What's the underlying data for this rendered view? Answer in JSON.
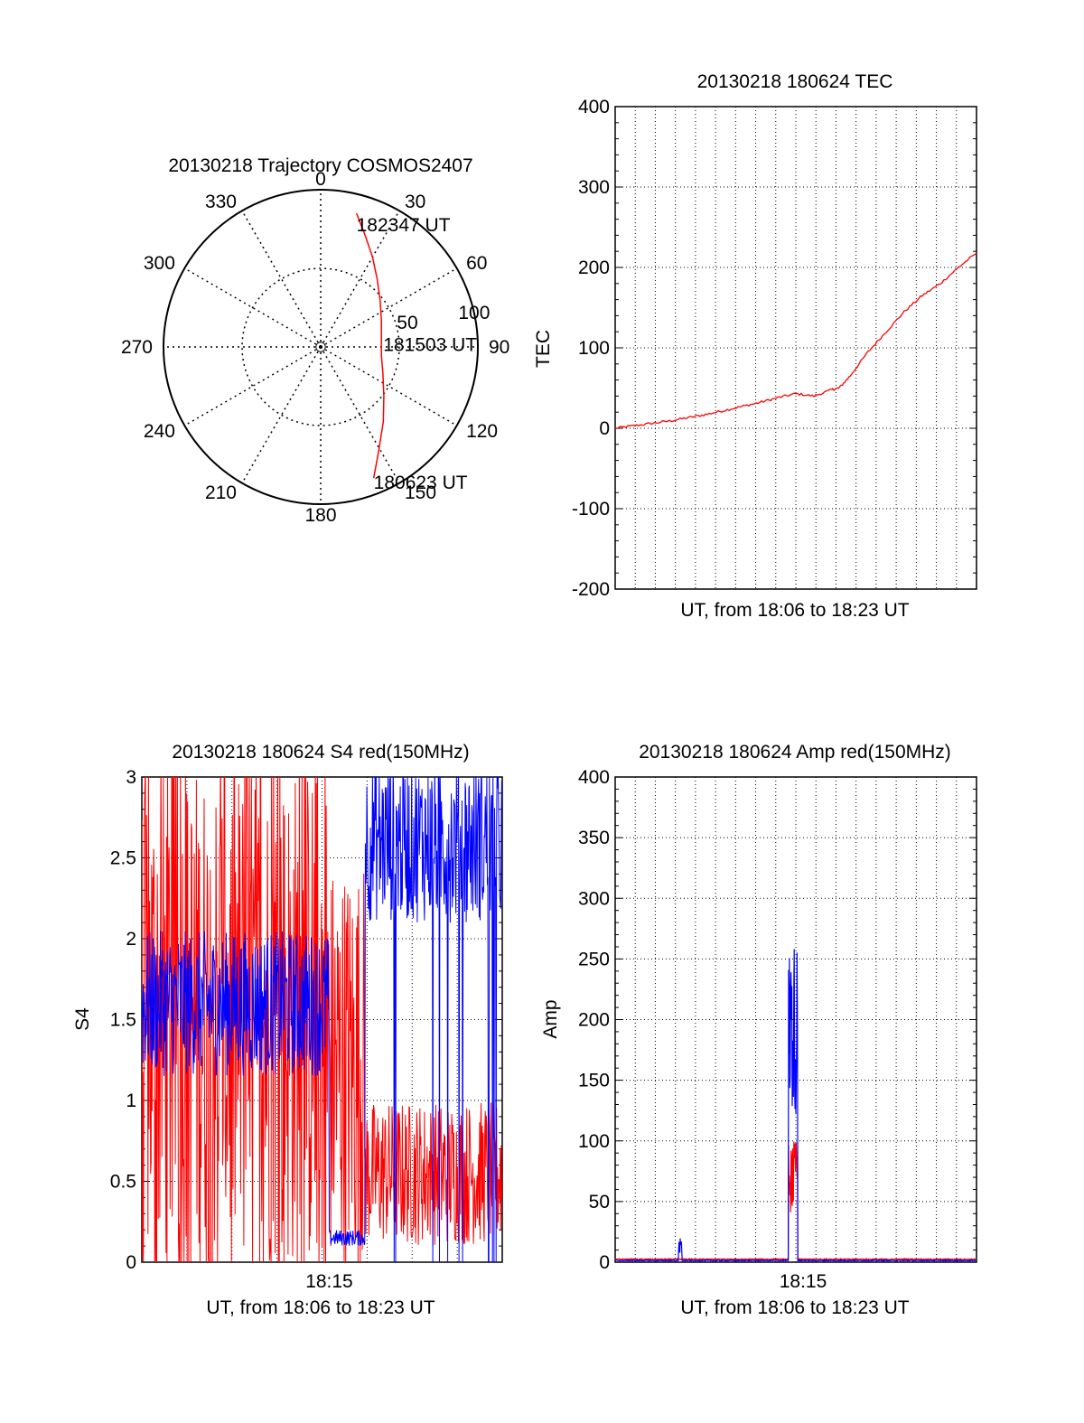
{
  "colors": {
    "red": "#ff0000",
    "blue": "#0000ff",
    "black": "#000000"
  },
  "chart_data": [
    {
      "id": "trajectory",
      "type": "scatter",
      "projection": "polar",
      "title": "20130218 Trajectory COSMOS2407",
      "azimuth_labels": [
        "0",
        "30",
        "60",
        "90",
        "120",
        "150",
        "180",
        "210",
        "240",
        "270",
        "300",
        "330"
      ],
      "radial_ticks": [
        "50",
        "100"
      ],
      "grid": true,
      "series": [
        {
          "color": "red",
          "points": [
            {
              "az": 15,
              "r": 88
            },
            {
              "az": 22,
              "r": 76
            },
            {
              "az": 30,
              "r": 66
            },
            {
              "az": 40,
              "r": 56
            },
            {
              "az": 52,
              "r": 48
            },
            {
              "az": 67,
              "r": 42
            },
            {
              "az": 82,
              "r": 39
            },
            {
              "az": 98,
              "r": 39
            },
            {
              "az": 113,
              "r": 43
            },
            {
              "az": 128,
              "r": 51
            },
            {
              "az": 140,
              "r": 62
            },
            {
              "az": 151,
              "r": 76
            },
            {
              "az": 158,
              "r": 90
            }
          ]
        }
      ],
      "annotations": [
        "182347 UT",
        "181503 UT",
        "180623 UT"
      ]
    },
    {
      "id": "tec",
      "type": "line",
      "title": "20130218 180624 TEC",
      "xlabel": "UT, from 18:06 to 18:23 UT",
      "ylabel": "TEC",
      "ylim": [
        -200,
        400
      ],
      "yticks": [
        "-200",
        "-100",
        "0",
        "100",
        "200",
        "300",
        "400"
      ],
      "grid": true,
      "series": [
        {
          "color": "red",
          "x": [
            0,
            0.05,
            0.1,
            0.15,
            0.2,
            0.25,
            0.3,
            0.35,
            0.4,
            0.45,
            0.5,
            0.55,
            0.6,
            0.62,
            0.65,
            0.7,
            0.75,
            0.8,
            0.85,
            0.9,
            0.95,
            1.0
          ],
          "y": [
            0,
            3,
            6,
            9,
            13,
            17,
            22,
            27,
            32,
            38,
            43,
            40,
            48,
            50,
            65,
            95,
            120,
            145,
            165,
            180,
            200,
            218
          ]
        }
      ]
    },
    {
      "id": "s4",
      "type": "line",
      "title": "20130218 180624 S4 red(150MHz)",
      "xlabel": "UT, from 18:06 to 18:23 UT",
      "ylabel": "S4",
      "ylim": [
        0,
        3
      ],
      "yticks": [
        "0",
        "0.5",
        "1",
        "1.5",
        "2",
        "2.5",
        "3"
      ],
      "xticks": [
        "18:15"
      ],
      "grid": true,
      "series": [
        {
          "color": "red",
          "segments": [
            {
              "x0": 0.0,
              "x1": 0.52,
              "base": 1.5,
              "spread": 1.6
            },
            {
              "x0": 0.52,
              "x1": 0.62,
              "base": 1.2,
              "spread": 1.3
            },
            {
              "x0": 0.62,
              "x1": 1.0,
              "base": 0.55,
              "spread": 0.45
            }
          ]
        },
        {
          "color": "blue",
          "segments": [
            {
              "x0": 0.0,
              "x1": 0.52,
              "base": 1.6,
              "spread": 0.45
            },
            {
              "x0": 0.52,
              "x1": 0.62,
              "base": 0.15,
              "spread": 0.05
            },
            {
              "x0": 0.62,
              "x1": 1.0,
              "base": 2.6,
              "spread": 0.5
            }
          ]
        }
      ]
    },
    {
      "id": "amp",
      "type": "line",
      "title": "20130218 180624 Amp red(150MHz)",
      "xlabel": "UT, from 18:06 to 18:23 UT",
      "ylabel": "Amp",
      "ylim": [
        0,
        400
      ],
      "yticks": [
        "0",
        "50",
        "100",
        "150",
        "200",
        "250",
        "300",
        "350",
        "400"
      ],
      "xticks": [
        "18:15"
      ],
      "grid": true,
      "series": [
        {
          "color": "red",
          "spikes": [
            {
              "x0": 0.48,
              "x1": 0.505,
              "lo": 40,
              "hi": 100
            }
          ],
          "baseline": 2
        },
        {
          "color": "blue",
          "spikes": [
            {
              "x0": 0.175,
              "x1": 0.185,
              "lo": 5,
              "hi": 20
            },
            {
              "x0": 0.48,
              "x1": 0.505,
              "lo": 120,
              "hi": 265
            }
          ],
          "baseline": 1
        }
      ]
    }
  ]
}
